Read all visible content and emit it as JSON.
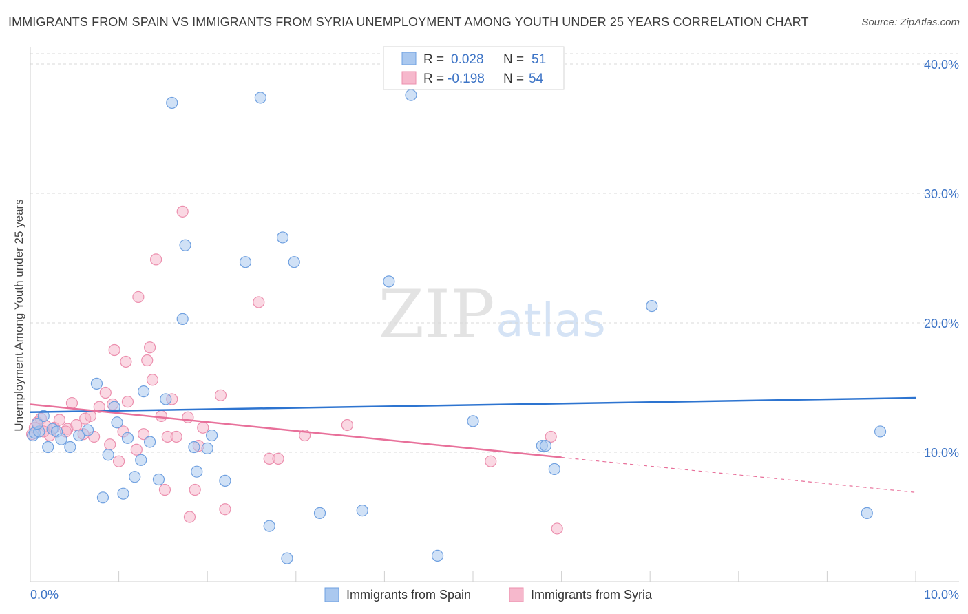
{
  "title": "IMMIGRANTS FROM SPAIN VS IMMIGRANTS FROM SYRIA UNEMPLOYMENT AMONG YOUTH UNDER 25 YEARS CORRELATION CHART",
  "source": "Source: ZipAtlas.com",
  "watermark": {
    "zip": "ZIP",
    "atlas": "atlas"
  },
  "colors": {
    "spain_fill": "#aac8ef",
    "spain_stroke": "#6fa0e0",
    "spain_line": "#2d74d0",
    "syria_fill": "#f6b8cc",
    "syria_stroke": "#ec8fae",
    "syria_line": "#e8709a",
    "axis_label": "#3d74c6",
    "grid": "#d8d8d8"
  },
  "legend": {
    "rows": [
      {
        "r_label": "R =",
        "r_value": "0.028",
        "n_label": "N =",
        "n_value": "51"
      },
      {
        "r_label": "R =",
        "r_value": "-0.198",
        "n_label": "N =",
        "n_value": "54"
      }
    ]
  },
  "chart_data": {
    "type": "scatter",
    "title": "IMMIGRANTS FROM SPAIN VS IMMIGRANTS FROM SYRIA UNEMPLOYMENT AMONG YOUTH UNDER 25 YEARS CORRELATION CHART",
    "xlabel": "",
    "ylabel": "Unemployment Among Youth under 25 years",
    "xlim": [
      0,
      10
    ],
    "ylim": [
      0,
      40.8
    ],
    "x_tick_labels": [
      "0.0%",
      "10.0%"
    ],
    "y_ticks": [
      10,
      20,
      30,
      40
    ],
    "y_tick_labels": [
      "10.0%",
      "20.0%",
      "30.0%",
      "40.0%"
    ],
    "series": [
      {
        "name": "Immigrants from Spain",
        "r": 0.028,
        "n": 51,
        "trend": {
          "x0": 0,
          "y0": 13.1,
          "x1": 10,
          "y1": 14.2
        },
        "points": [
          [
            0.03,
            11.3
          ],
          [
            0.05,
            11.5
          ],
          [
            0.1,
            11.6
          ],
          [
            0.15,
            12.8
          ],
          [
            0.2,
            10.4
          ],
          [
            0.25,
            11.8
          ],
          [
            0.3,
            11.6
          ],
          [
            0.35,
            11.0
          ],
          [
            0.45,
            10.4
          ],
          [
            0.55,
            11.3
          ],
          [
            0.65,
            11.7
          ],
          [
            0.75,
            15.3
          ],
          [
            0.82,
            6.5
          ],
          [
            0.88,
            9.8
          ],
          [
            0.95,
            13.5
          ],
          [
            0.98,
            12.3
          ],
          [
            1.05,
            6.8
          ],
          [
            1.1,
            11.1
          ],
          [
            1.18,
            8.1
          ],
          [
            1.25,
            9.4
          ],
          [
            1.28,
            14.7
          ],
          [
            1.35,
            10.8
          ],
          [
            1.45,
            7.9
          ],
          [
            1.53,
            14.1
          ],
          [
            1.6,
            37.0
          ],
          [
            1.72,
            20.3
          ],
          [
            1.75,
            26.0
          ],
          [
            1.85,
            10.4
          ],
          [
            1.88,
            8.5
          ],
          [
            2.0,
            10.3
          ],
          [
            2.05,
            11.3
          ],
          [
            2.2,
            7.8
          ],
          [
            2.43,
            24.7
          ],
          [
            2.6,
            37.4
          ],
          [
            2.7,
            4.3
          ],
          [
            2.85,
            26.6
          ],
          [
            2.9,
            1.8
          ],
          [
            2.98,
            24.7
          ],
          [
            3.27,
            5.3
          ],
          [
            3.75,
            5.5
          ],
          [
            4.05,
            23.2
          ],
          [
            4.3,
            37.6
          ],
          [
            4.6,
            2.0
          ],
          [
            5.0,
            12.4
          ],
          [
            5.78,
            10.5
          ],
          [
            5.82,
            10.5
          ],
          [
            5.92,
            8.7
          ],
          [
            7.02,
            21.3
          ],
          [
            9.45,
            5.3
          ],
          [
            9.6,
            11.6
          ],
          [
            0.08,
            12.2
          ]
        ]
      },
      {
        "name": "Immigrants from Syria",
        "r": -0.198,
        "n": 54,
        "trend": {
          "x0": 0,
          "y0": 13.7,
          "x1": 6.0,
          "y1": 9.6
        },
        "trend_dashed": {
          "x0": 6.0,
          "y0": 9.6,
          "x1": 10,
          "y1": 6.9
        },
        "points": [
          [
            0.02,
            11.4
          ],
          [
            0.05,
            11.9
          ],
          [
            0.08,
            12.3
          ],
          [
            0.12,
            12.6
          ],
          [
            0.18,
            12.0
          ],
          [
            0.22,
            11.3
          ],
          [
            0.27,
            11.9
          ],
          [
            0.33,
            12.5
          ],
          [
            0.42,
            11.8
          ],
          [
            0.47,
            13.8
          ],
          [
            0.52,
            12.1
          ],
          [
            0.6,
            11.4
          ],
          [
            0.62,
            12.6
          ],
          [
            0.68,
            12.8
          ],
          [
            0.72,
            11.2
          ],
          [
            0.78,
            13.5
          ],
          [
            0.85,
            14.6
          ],
          [
            0.9,
            10.6
          ],
          [
            0.93,
            13.7
          ],
          [
            0.95,
            17.9
          ],
          [
            1.0,
            9.3
          ],
          [
            1.05,
            11.6
          ],
          [
            1.08,
            17.0
          ],
          [
            1.1,
            13.9
          ],
          [
            1.2,
            10.2
          ],
          [
            1.22,
            22.0
          ],
          [
            1.28,
            11.4
          ],
          [
            1.32,
            17.1
          ],
          [
            1.35,
            18.1
          ],
          [
            1.38,
            15.6
          ],
          [
            1.42,
            24.9
          ],
          [
            1.48,
            12.8
          ],
          [
            1.52,
            7.1
          ],
          [
            1.55,
            11.2
          ],
          [
            1.6,
            14.1
          ],
          [
            1.65,
            11.2
          ],
          [
            1.72,
            28.6
          ],
          [
            1.78,
            12.7
          ],
          [
            1.8,
            5.0
          ],
          [
            1.86,
            7.1
          ],
          [
            1.9,
            10.5
          ],
          [
            1.95,
            11.9
          ],
          [
            2.15,
            14.4
          ],
          [
            2.2,
            5.6
          ],
          [
            2.58,
            21.6
          ],
          [
            2.7,
            9.5
          ],
          [
            2.8,
            9.5
          ],
          [
            3.1,
            11.3
          ],
          [
            3.58,
            12.1
          ],
          [
            5.2,
            9.3
          ],
          [
            5.88,
            11.2
          ],
          [
            5.95,
            4.1
          ],
          [
            0.15,
            11.6
          ],
          [
            0.4,
            11.6
          ]
        ]
      }
    ]
  },
  "ylabel": "Unemployment Among Youth under 25 years",
  "bottom_legend": [
    {
      "label": "Immigrants from Spain"
    },
    {
      "label": "Immigrants from Syria"
    }
  ]
}
